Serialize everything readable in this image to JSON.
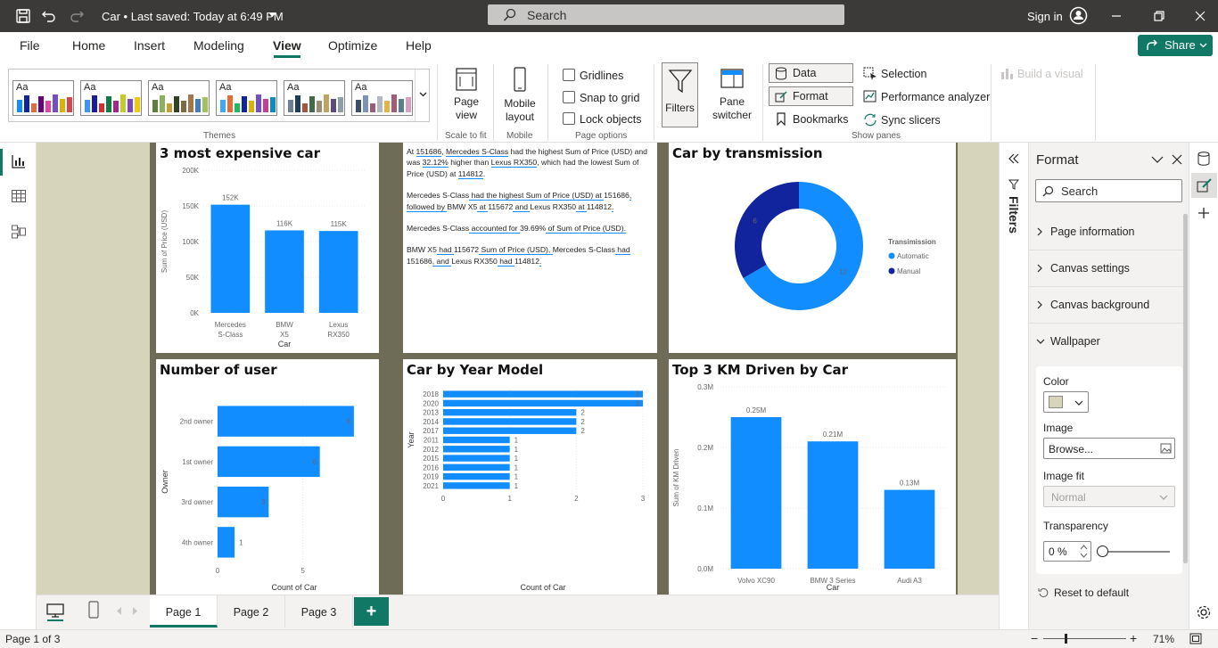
{
  "titlebar": {
    "title": "Car • Last saved: Today at 6:49 PM",
    "search_placeholder": "Search",
    "signin": "Sign in"
  },
  "menu": {
    "items": [
      "File",
      "Home",
      "Insert",
      "Modeling",
      "View",
      "Optimize",
      "Help"
    ],
    "active": "View",
    "share": "Share"
  },
  "ribbon": {
    "themes_label": "Themes",
    "page_view": "Page view",
    "scale_label": "Scale to fit",
    "mobile_layout": "Mobile layout",
    "mobile_label": "Mobile",
    "gridlines": "Gridlines",
    "snap": "Snap to grid",
    "lock": "Lock objects",
    "page_options_label": "Page options",
    "filters": "Filters",
    "pane_switcher": "Pane switcher",
    "data": "Data",
    "format": "Format",
    "bookmarks": "Bookmarks",
    "selection": "Selection",
    "perf": "Performance analyzer",
    "sync": "Sync slicers",
    "show_panes_label": "Show panes",
    "build_visual": "Build a visual",
    "theme_label": "Aa"
  },
  "visuals": {
    "expensive": {
      "title": "3 most expensive car",
      "chart_data": {
        "type": "bar",
        "categories": [
          "Mercedes S-Class",
          "BMW X5",
          "Lexus RX350"
        ],
        "values": [
          151686,
          115672,
          114812
        ],
        "labels": [
          "152K",
          "116K",
          "115K"
        ],
        "xlabel": "Car",
        "ylabel": "Sum of Price (USD)",
        "yticks": [
          "0K",
          "50K",
          "100K",
          "150K",
          "200K"
        ],
        "ylim": [
          0,
          200000
        ]
      }
    },
    "narrative": {
      "p1": [
        "At ",
        "151686",
        ", ",
        "Mercedes S-Class",
        " had the highest Sum of Price (USD) and was ",
        "32.12%",
        " higher than ",
        "Lexus RX350",
        ", which had the lowest Sum of Price (USD) at ",
        "114812",
        "."
      ],
      "p2": [
        "Mercedes S-Class",
        " had the highest Sum of Price (USD) at ",
        "151686",
        ", followed by ",
        "BMW X5",
        " at ",
        "115672",
        " and ",
        "Lexus RX350",
        " at ",
        "114812",
        "."
      ],
      "p3": [
        "Mercedes S-Class",
        " accounted for ",
        "39.69%",
        " of Sum of Price (USD)."
      ],
      "p4": [
        "BMW X5",
        " had ",
        "115672",
        " Sum of Price (USD), ",
        "Mercedes S-Class",
        " had ",
        "151686",
        ", and ",
        "Lexus RX350",
        " had ",
        "114812",
        "."
      ]
    },
    "transmission": {
      "title": "Car by transmission",
      "legend_title": "Transimission",
      "chart_data": {
        "type": "pie",
        "categories": [
          "Automatic",
          "Manual"
        ],
        "values": [
          12,
          6
        ],
        "colors": [
          "#118dff",
          "#12239e"
        ]
      }
    },
    "users": {
      "title": "Number of user",
      "chart_data": {
        "type": "bar",
        "orientation": "horizontal",
        "categories": [
          "2nd owner",
          "1st owner",
          "3rd owner",
          "4th owner"
        ],
        "values": [
          8,
          6,
          3,
          1
        ],
        "xlabel": "Count of Car",
        "ylabel": "Owner",
        "xticks": [
          "0",
          "5"
        ],
        "xlim": [
          0,
          9
        ]
      }
    },
    "year": {
      "title": "Car by Year Model",
      "chart_data": {
        "type": "bar",
        "orientation": "horizontal",
        "categories": [
          "2018",
          "2020",
          "2013",
          "2014",
          "2017",
          "2011",
          "2012",
          "2015",
          "2016",
          "2019",
          "2021"
        ],
        "values": [
          3,
          3,
          2,
          2,
          2,
          1,
          1,
          1,
          1,
          1,
          1
        ],
        "xlabel": "Count of Car",
        "ylabel": "Year",
        "xticks": [
          "0",
          "1",
          "2",
          "3"
        ],
        "xlim": [
          0,
          3
        ]
      }
    },
    "km": {
      "title": "Top 3 KM Driven by Car",
      "chart_data": {
        "type": "bar",
        "categories": [
          "Volvo XC90",
          "BMW 3 Series",
          "Audi A3"
        ],
        "values": [
          250000,
          210000,
          130000
        ],
        "labels": [
          "0.25M",
          "0.21M",
          "0.13M"
        ],
        "xlabel": "Car",
        "ylabel": "Sum of KM Driven",
        "yticks": [
          "0.0M",
          "0.1M",
          "0.2M",
          "0.3M"
        ],
        "ylim": [
          0,
          300000
        ]
      }
    }
  },
  "filters_label": "Filters",
  "format_pane": {
    "title": "Format",
    "search_placeholder": "Search",
    "sections": [
      "Page information",
      "Canvas settings",
      "Canvas background",
      "Wallpaper"
    ],
    "color_label": "Color",
    "color_value": "#d6d5bc",
    "image_label": "Image",
    "browse": "Browse...",
    "image_fit_label": "Image fit",
    "image_fit_value": "Normal",
    "transparency_label": "Transparency",
    "transparency_value": "0 %",
    "reset": "Reset to default"
  },
  "pages": {
    "tabs": [
      "Page 1",
      "Page 2",
      "Page 3"
    ],
    "active": "Page 1",
    "add": "+"
  },
  "status": {
    "page": "Page 1 of 3",
    "zoom": "71%"
  }
}
